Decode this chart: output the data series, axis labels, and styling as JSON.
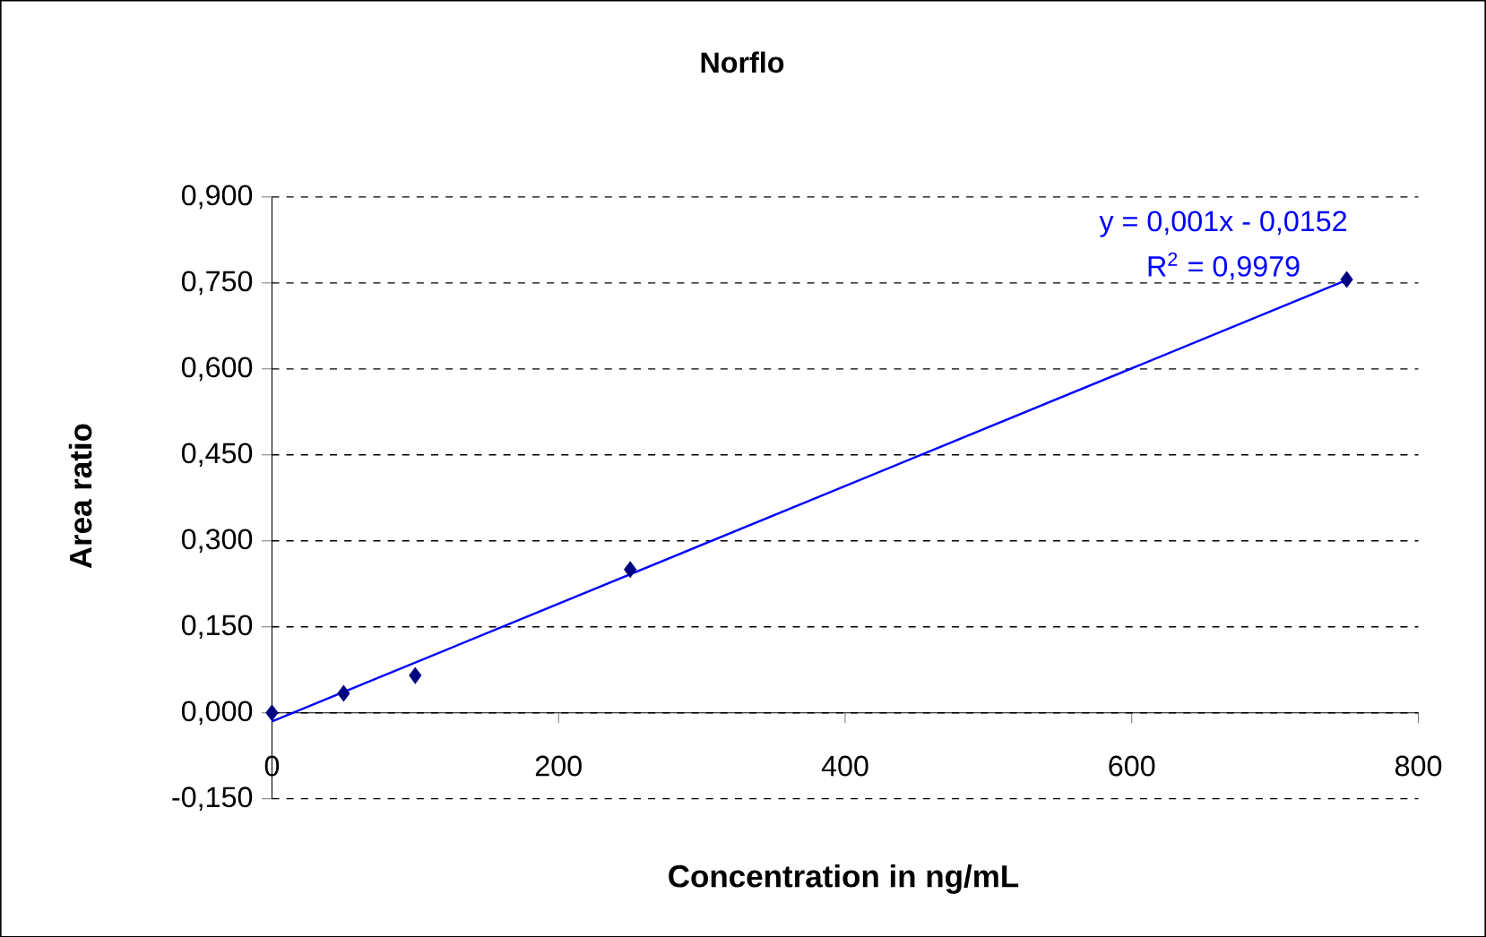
{
  "chart_data": {
    "type": "scatter",
    "title": "Norflo",
    "xlabel": "Concentration in ng/mL",
    "ylabel": "Area ratio",
    "annotations": [
      "y = 0,001x - 0,0152",
      "R$^{2}$ = 0,9979"
    ],
    "xlim": [
      0,
      800
    ],
    "xticks": [
      0,
      200,
      400,
      600,
      800
    ],
    "ylim": [
      -0.15,
      0.9
    ],
    "yticks": [
      {
        "value": -0.15,
        "label": "-0,150"
      },
      {
        "value": 0,
        "label": "0,000"
      },
      {
        "value": 0.15,
        "label": "0,150"
      },
      {
        "value": 0.3,
        "label": "0,300"
      },
      {
        "value": 0.45,
        "label": "0,450"
      },
      {
        "value": 0.6,
        "label": "0,600"
      },
      {
        "value": 0.75,
        "label": "0,750"
      },
      {
        "value": 0.9,
        "label": "0,900"
      }
    ],
    "grid": "y",
    "marker": "diamond",
    "series": [
      {
        "color": "#000080",
        "x": [
          0,
          50,
          100,
          250,
          750
        ],
        "values": [
          0.0,
          0.034,
          0.065,
          0.25,
          0.756
        ]
      },
      {
        "type": "line",
        "color": "#0000ff",
        "marker": "none",
        "x": [
          0,
          750
        ],
        "values": [
          -0.015,
          0.755
        ]
      }
    ]
  }
}
